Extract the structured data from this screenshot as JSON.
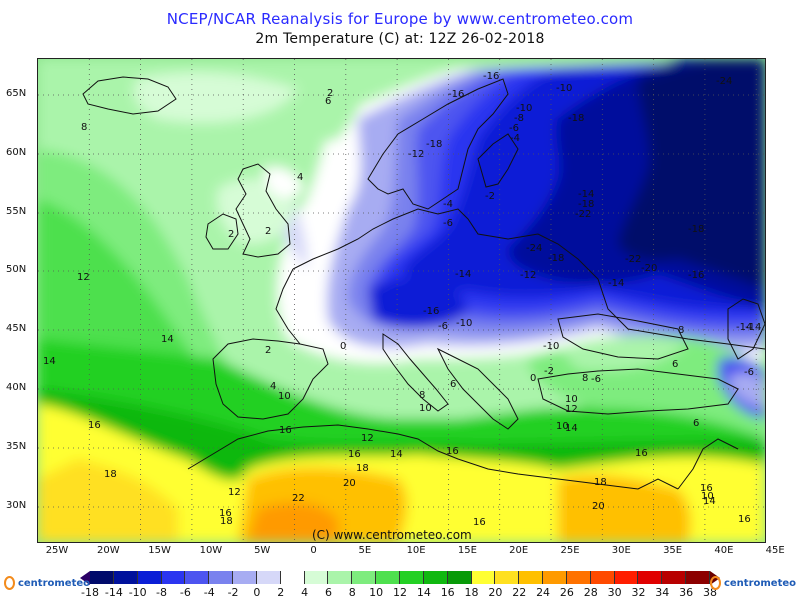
{
  "title_line1": "NCEP/NCAR Reanalysis for Europe by www.centrometeo.com",
  "title_line2": "2m Temperature (C) at: 12Z 26-02-2018",
  "copyright": "(C) www.centrometeo.com",
  "logo_text": "centrometeo",
  "lat_labels": [
    "65N",
    "60N",
    "55N",
    "50N",
    "45N",
    "40N",
    "35N",
    "30N"
  ],
  "lon_labels": [
    "25W",
    "20W",
    "15W",
    "10W",
    "5W",
    "0",
    "5E",
    "10E",
    "15E",
    "20E",
    "25E",
    "30E",
    "35E",
    "40E",
    "45E"
  ],
  "legend": {
    "labels": [
      "-18",
      "-14",
      "-10",
      "-8",
      "-6",
      "-4",
      "-2",
      "0",
      "2",
      "4",
      "6",
      "8",
      "10",
      "12",
      "14",
      "16",
      "18",
      "20",
      "22",
      "24",
      "26",
      "28",
      "30",
      "32",
      "34",
      "36",
      "38"
    ],
    "colors": [
      "#000a6b",
      "#00119c",
      "#0a1ed6",
      "#2b35f0",
      "#4d54f0",
      "#7a82ee",
      "#a7acf2",
      "#d6d8f8",
      "#ffffff",
      "#d6fcd6",
      "#aaf4aa",
      "#7eec7e",
      "#4ee04e",
      "#24d024",
      "#10b810",
      "#089a08",
      "#ffff33",
      "#ffe020",
      "#ffc000",
      "#ff9a00",
      "#ff7200",
      "#ff4a00",
      "#ff1e00",
      "#e00000",
      "#b80000",
      "#8c0000"
    ]
  },
  "contour_labels": [
    {
      "text": "-16"
    },
    {
      "text": "-16"
    },
    {
      "text": "-10"
    },
    {
      "text": "-18"
    },
    {
      "text": "-24"
    },
    {
      "text": "-10"
    },
    {
      "text": "-8"
    },
    {
      "text": "-6"
    },
    {
      "text": "-4"
    },
    {
      "text": "-12"
    },
    {
      "text": "-18"
    },
    {
      "text": "-2"
    },
    {
      "text": "-4"
    },
    {
      "text": "-6"
    },
    {
      "text": "-14"
    },
    {
      "text": "-18"
    },
    {
      "text": "-22"
    },
    {
      "text": "-24"
    },
    {
      "text": "-18"
    },
    {
      "text": "-22"
    },
    {
      "text": "-20"
    },
    {
      "text": "-18"
    },
    {
      "text": "-14"
    },
    {
      "text": "-12"
    },
    {
      "text": "-14"
    },
    {
      "text": "-16"
    },
    {
      "text": "-16"
    },
    {
      "text": "-10"
    },
    {
      "text": "-6"
    },
    {
      "text": "-14"
    },
    {
      "text": "-10"
    },
    {
      "text": "-2"
    },
    {
      "text": "0"
    },
    {
      "text": "-6"
    },
    {
      "text": "2"
    },
    {
      "text": "6"
    },
    {
      "text": "8"
    },
    {
      "text": "4"
    },
    {
      "text": "2"
    },
    {
      "text": "2"
    },
    {
      "text": "0"
    },
    {
      "text": "4"
    },
    {
      "text": "2"
    },
    {
      "text": "10"
    },
    {
      "text": "12"
    },
    {
      "text": "14"
    },
    {
      "text": "14"
    },
    {
      "text": "16"
    },
    {
      "text": "16"
    },
    {
      "text": "18"
    },
    {
      "text": "16"
    },
    {
      "text": "12"
    },
    {
      "text": "14"
    },
    {
      "text": "16"
    },
    {
      "text": "16"
    },
    {
      "text": "18"
    },
    {
      "text": "20"
    },
    {
      "text": "22"
    },
    {
      "text": "12"
    },
    {
      "text": "16"
    },
    {
      "text": "18"
    },
    {
      "text": "8"
    },
    {
      "text": "10"
    },
    {
      "text": "6"
    },
    {
      "text": "8"
    },
    {
      "text": "10"
    },
    {
      "text": "12"
    },
    {
      "text": "10"
    },
    {
      "text": "14"
    },
    {
      "text": "16"
    },
    {
      "text": "18"
    },
    {
      "text": "20"
    },
    {
      "text": "16"
    },
    {
      "text": "14"
    },
    {
      "text": "10"
    },
    {
      "text": "6"
    },
    {
      "text": "8"
    },
    {
      "text": "6"
    },
    {
      "text": "16"
    },
    {
      "text": "-6"
    },
    {
      "text": "-14"
    }
  ]
}
